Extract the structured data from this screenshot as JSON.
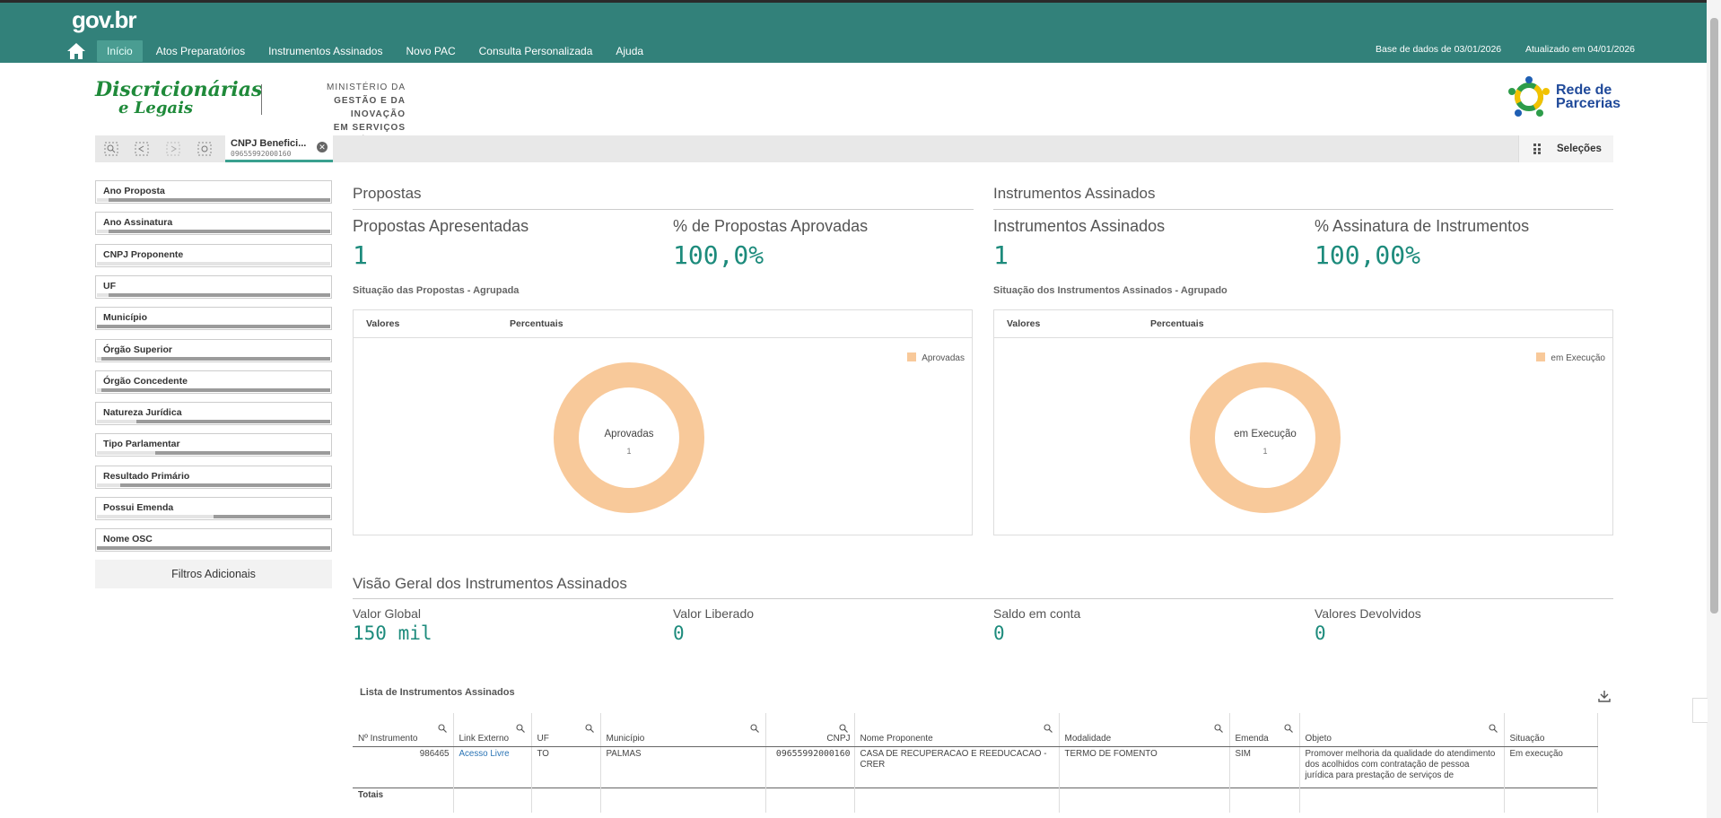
{
  "header": {
    "logo": "gov.br",
    "nav": [
      "Início",
      "Atos Preparatórios",
      "Instrumentos Assinados",
      "Novo PAC",
      "Consulta Personalizada",
      "Ajuda"
    ],
    "active_nav": "Início",
    "db_date": "Base de dados de 03/01/2026",
    "updated": "Atualizado em 04/01/2026"
  },
  "branding": {
    "left_logo_line1": "Discricionárias",
    "left_logo_line2": "e Legais",
    "ministry_line1": "MINISTÉRIO DA",
    "ministry_line2": "GESTÃO E DA INOVAÇÃO",
    "ministry_line3": "EM SERVIÇOS PÚBLICOS",
    "right_logo_line1": "Rede de",
    "right_logo_line2": "Parcerias"
  },
  "selections": {
    "chip_title": "CNPJ Benefici...",
    "chip_value": "09655992000160",
    "button_label": "Seleções"
  },
  "filters": [
    {
      "label": "Ano Proposta",
      "fill": 0.05
    },
    {
      "label": "Ano Assinatura",
      "fill": 0.05
    },
    {
      "label": "CNPJ Proponente",
      "fill": 1.0
    },
    {
      "label": "UF",
      "fill": 0.05
    },
    {
      "label": "Município",
      "fill": 0.0
    },
    {
      "label": "Órgão Superior",
      "fill": 0.02
    },
    {
      "label": "Órgão Concedente",
      "fill": 0.02
    },
    {
      "label": "Natureza Jurídica",
      "fill": 0.17
    },
    {
      "label": "Tipo Parlamentar",
      "fill": 0.25
    },
    {
      "label": "Resultado Primário",
      "fill": 0.1
    },
    {
      "label": "Possui Emenda",
      "fill": 0.5
    },
    {
      "label": "Nome OSC",
      "fill": 0.0
    }
  ],
  "additional_filters": "Filtros Adicionais",
  "propostas": {
    "section": "Propostas",
    "kpi1_title": "Propostas Apresentadas",
    "kpi1_value": "1",
    "kpi2_title": "% de Propostas Aprovadas",
    "kpi2_value": "100,0%",
    "chart_title": "Situação das Propostas - Agrupada",
    "tab1": "Valores",
    "tab2": "Percentuais",
    "legend": "Aprovadas",
    "center_label": "Aprovadas",
    "center_value": "1"
  },
  "instrumentos": {
    "section": "Instrumentos Assinados",
    "kpi1_title": "Instrumentos Assinados",
    "kpi1_value": "1",
    "kpi2_title": "% Assinatura de Instrumentos",
    "kpi2_value": "100,00%",
    "chart_title": "Situação dos Instrumentos Assinados - Agrupado",
    "tab1": "Valores",
    "tab2": "Percentuais",
    "legend": "em Execução",
    "center_label": "em Execução",
    "center_value": "1"
  },
  "overview": {
    "section": "Visão Geral dos Instrumentos Assinados",
    "items": [
      {
        "title": "Valor Global",
        "value": "150 mil"
      },
      {
        "title": "Valor Liberado",
        "value": "0"
      },
      {
        "title": "Saldo em conta",
        "value": "0"
      },
      {
        "title": "Valores Devolvidos",
        "value": "0"
      }
    ]
  },
  "table": {
    "title": "Lista de Instrumentos Assinados",
    "headers": [
      "Nº Instrumento",
      "Link Externo",
      "UF",
      "Município",
      "CNPJ",
      "Nome Proponente",
      "Modalidade",
      "Emenda",
      "Objeto",
      "Situação"
    ],
    "row": [
      "986465",
      "Acesso Livre",
      "TO",
      "PALMAS",
      "09655992000160",
      "CASA DE RECUPERACAO E REEDUCACAO - CRER",
      "TERMO DE FOMENTO",
      "SIM",
      "Promover melhoria da qualidade do atendimento dos acolhidos com contratação de pessoa jurídica para prestação de serviços de",
      "Em execução"
    ],
    "totals_label": "Totais"
  },
  "chart_data": [
    {
      "type": "pie",
      "title": "Situação das Propostas - Agrupada",
      "categories": [
        "Aprovadas"
      ],
      "values": [
        1
      ],
      "legend": "top-right",
      "color": "#f8c99a"
    },
    {
      "type": "pie",
      "title": "Situação dos Instrumentos Assinados - Agrupado",
      "categories": [
        "em Execução"
      ],
      "values": [
        1
      ],
      "legend": "top-right",
      "color": "#f8c99a"
    }
  ]
}
